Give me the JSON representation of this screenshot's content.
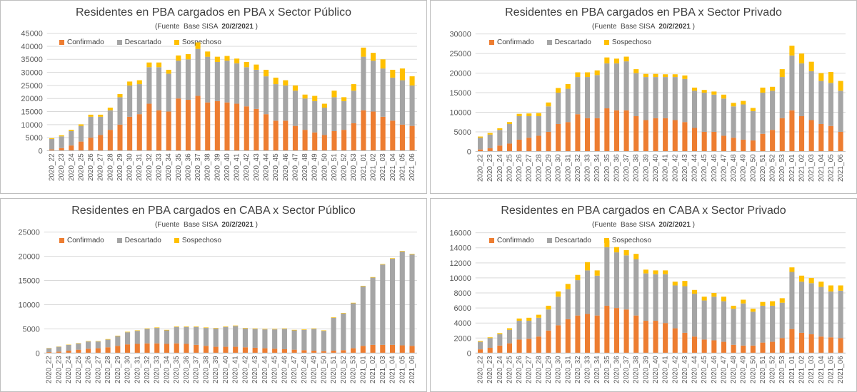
{
  "colors": {
    "confirmado": "#ED7D31",
    "descartado": "#A5A5A5",
    "sospechoso": "#FFC000",
    "axis_text": "#595959",
    "grid": "#D9D9D9"
  },
  "chart_data": [
    {
      "type": "bar",
      "stacked": true,
      "title": "Residentes en  PBA cargados en PBA x Sector Público",
      "subtitle_prefix": "(Fuente  Base SISA",
      "subtitle_date": "20/2/2021",
      "subtitle_suffix": ")",
      "legend_placement": "top-left",
      "ylim": [
        0,
        45000
      ],
      "yticks": [
        "0",
        "5000",
        "10000",
        "15000",
        "20000",
        "25000",
        "30000",
        "35000",
        "40000",
        "45000"
      ],
      "categories": [
        "2020_22",
        "2020_23",
        "2020_24",
        "2020_25",
        "2020_26",
        "2020_27",
        "2020_28",
        "2020_29",
        "2020_30",
        "2020_31",
        "2020_32",
        "2020_33",
        "2020_34",
        "2020_35",
        "2020_36",
        "2020_37",
        "2020_38",
        "2020_39",
        "2020_40",
        "2020_41",
        "2020_42",
        "2020_43",
        "2020_44",
        "2020_45",
        "2020_46",
        "2020_47",
        "2020_48",
        "2020_49",
        "2020_50",
        "2020_51",
        "2020_52",
        "2020_53",
        "2021_01",
        "2021_02",
        "2021_03",
        "2021_04",
        "2021_05",
        "2021_06"
      ],
      "series": [
        {
          "name": "Confirmado",
          "values": [
            500,
            1000,
            2000,
            3500,
            5000,
            6000,
            8000,
            10000,
            13000,
            14000,
            18000,
            15500,
            15000,
            20000,
            19500,
            21000,
            18500,
            19000,
            18500,
            18000,
            17000,
            16000,
            14000,
            11500,
            11500,
            9500,
            8000,
            7000,
            6000,
            7500,
            8000,
            10500,
            15500,
            15000,
            13000,
            11500,
            10000,
            9500
          ]
        },
        {
          "name": "Descartado",
          "values": [
            4000,
            4500,
            5500,
            6000,
            8000,
            7000,
            7500,
            10500,
            12000,
            11500,
            14000,
            16500,
            14500,
            14500,
            15500,
            18000,
            17500,
            15000,
            16000,
            15500,
            15000,
            15000,
            14500,
            14000,
            13500,
            13500,
            12000,
            12000,
            10500,
            13000,
            11000,
            12500,
            20500,
            19500,
            18500,
            16500,
            17000,
            15500
          ]
        },
        {
          "name": "Sospechoso",
          "values": [
            300,
            400,
            500,
            600,
            800,
            800,
            1000,
            1200,
            1500,
            1500,
            1800,
            1800,
            1500,
            2000,
            2000,
            2500,
            2000,
            2000,
            1800,
            1800,
            2000,
            2000,
            2500,
            2500,
            2000,
            2000,
            1500,
            2000,
            1500,
            2500,
            1500,
            2500,
            3500,
            3000,
            3500,
            3000,
            4500,
            3500
          ]
        }
      ]
    },
    {
      "type": "bar",
      "stacked": true,
      "title": "Residentes en  PBA cargados en PBA x Sector Privado",
      "subtitle_prefix": "(Fuente  Base SISA",
      "subtitle_date": "20/2/2021",
      "subtitle_suffix": ")",
      "legend_placement": "top-left",
      "ylim": [
        0,
        30000
      ],
      "yticks": [
        "0",
        "5000",
        "10000",
        "15000",
        "20000",
        "25000",
        "30000"
      ],
      "categories": [
        "2020_22",
        "2020_23",
        "2020_24",
        "2020_25",
        "2020_26",
        "2020_27",
        "2020_28",
        "2020_29",
        "2020_30",
        "2020_31",
        "2020_32",
        "2020_33",
        "2020_34",
        "2020_35",
        "2020_36",
        "2020_37",
        "2020_38",
        "2020_39",
        "2020_40",
        "2020_41",
        "2020_42",
        "2020_43",
        "2020_44",
        "2020_45",
        "2020_46",
        "2020_47",
        "2020_48",
        "2020_49",
        "2020_50",
        "2020_51",
        "2020_52",
        "2020_53",
        "2021_01",
        "2021_02",
        "2021_03",
        "2021_04",
        "2021_05",
        "2021_06"
      ],
      "series": [
        {
          "name": "Confirmado",
          "values": [
            500,
            800,
            1500,
            2000,
            3000,
            3500,
            4000,
            5000,
            7000,
            7500,
            9500,
            8500,
            8500,
            11000,
            10500,
            10500,
            9000,
            8000,
            8500,
            8500,
            8000,
            7500,
            6000,
            5000,
            5000,
            4000,
            3500,
            3000,
            2800,
            4500,
            5500,
            8500,
            10500,
            9000,
            8000,
            7000,
            6500,
            5000
          ]
        },
        {
          "name": "Descartado",
          "values": [
            3000,
            3500,
            4000,
            5000,
            6000,
            5500,
            5000,
            6500,
            8000,
            8500,
            9500,
            10500,
            11000,
            11500,
            12000,
            12500,
            11000,
            11000,
            10500,
            10500,
            11000,
            11000,
            9500,
            10000,
            9500,
            9500,
            8000,
            9000,
            7500,
            10500,
            10000,
            10500,
            14000,
            13500,
            12500,
            11000,
            11000,
            10500
          ]
        },
        {
          "name": "Sospechoso",
          "values": [
            300,
            400,
            400,
            500,
            600,
            700,
            800,
            1000,
            1200,
            1200,
            1200,
            1200,
            1200,
            1500,
            1200,
            1200,
            1000,
            800,
            800,
            700,
            700,
            900,
            800,
            700,
            800,
            1000,
            900,
            900,
            800,
            1300,
            1000,
            2000,
            2500,
            2500,
            2400,
            2000,
            2800,
            2500
          ]
        }
      ]
    },
    {
      "type": "bar",
      "stacked": true,
      "title": "Residentes en  PBA cargados en CABA x Sector Público",
      "subtitle_prefix": "(Fuente  Base SISA",
      "subtitle_date": "20/2/2021",
      "subtitle_suffix": ")",
      "legend_placement": "top-left",
      "ylim": [
        0,
        25000
      ],
      "yticks": [
        "0",
        "5000",
        "10000",
        "15000",
        "20000",
        "25000"
      ],
      "categories": [
        "2020_22",
        "2020_23",
        "2020_24",
        "2020_25",
        "2020_26",
        "2020_27",
        "2020_28",
        "2020_29",
        "2020_30",
        "2020_31",
        "2020_32",
        "2020_33",
        "2020_34",
        "2020_35",
        "2020_36",
        "2020_37",
        "2020_38",
        "2020_39",
        "2020_40",
        "2020_41",
        "2020_42",
        "2020_43",
        "2020_44",
        "2020_45",
        "2020_46",
        "2020_47",
        "2020_48",
        "2020_49",
        "2020_50",
        "2020_51",
        "2020_52",
        "2020_53",
        "2021_01",
        "2021_02",
        "2021_03",
        "2021_04",
        "2021_05",
        "2021_06"
      ],
      "series": [
        {
          "name": "Confirmado",
          "values": [
            200,
            300,
            500,
            700,
            900,
            1000,
            1200,
            1500,
            1800,
            1900,
            2000,
            2000,
            1900,
            2000,
            1900,
            1700,
            1500,
            1300,
            1300,
            1300,
            1200,
            1100,
            1000,
            900,
            800,
            700,
            600,
            500,
            400,
            500,
            600,
            1000,
            1500,
            1700,
            1700,
            1700,
            1600,
            1500
          ]
        },
        {
          "name": "Descartado",
          "values": [
            800,
            1000,
            1200,
            1300,
            1500,
            1400,
            1600,
            2000,
            2500,
            2700,
            3000,
            3200,
            2800,
            3400,
            3500,
            3700,
            3700,
            3800,
            4100,
            4300,
            3900,
            3900,
            3900,
            4000,
            4200,
            4000,
            4200,
            4500,
            4200,
            6800,
            7600,
            9300,
            12300,
            13900,
            16600,
            17800,
            19400,
            18900
          ]
        },
        {
          "name": "Sospechoso",
          "values": [
            50,
            50,
            60,
            70,
            80,
            80,
            90,
            100,
            100,
            100,
            100,
            100,
            100,
            100,
            100,
            100,
            100,
            100,
            100,
            100,
            100,
            100,
            100,
            100,
            100,
            100,
            100,
            100,
            100,
            100,
            100,
            100,
            100,
            100,
            100,
            100,
            100,
            100
          ]
        }
      ]
    },
    {
      "type": "bar",
      "stacked": true,
      "title": "Residentes en  PBA cargados en CABA x Sector Privado",
      "subtitle_prefix": "(Fuente  Base SISA",
      "subtitle_date": "20/2/2021",
      "subtitle_suffix": ")",
      "legend_placement": "top-left",
      "ylim": [
        0,
        16000
      ],
      "yticks": [
        "0",
        "2000",
        "4000",
        "6000",
        "8000",
        "10000",
        "12000",
        "14000",
        "16000"
      ],
      "categories": [
        "2020_22",
        "2020_23",
        "2020_24",
        "2020_25",
        "2020_26",
        "2020_27",
        "2020_28",
        "2020_29",
        "2020_30",
        "2020_31",
        "2020_32",
        "2020_33",
        "2020_34",
        "2020_35",
        "2020_36",
        "2020_37",
        "2020_38",
        "2020_39",
        "2020_40",
        "2020_41",
        "2020_42",
        "2020_43",
        "2020_44",
        "2020_45",
        "2020_46",
        "2020_47",
        "2020_48",
        "2020_49",
        "2020_50",
        "2020_51",
        "2020_52",
        "2020_53",
        "2021_01",
        "2021_02",
        "2021_03",
        "2021_04",
        "2021_05",
        "2021_06"
      ],
      "series": [
        {
          "name": "Confirmado",
          "values": [
            500,
            700,
            1000,
            1300,
            1800,
            1900,
            2200,
            3000,
            3700,
            4500,
            5000,
            5200,
            5000,
            6300,
            6000,
            5800,
            5000,
            4300,
            4300,
            4000,
            3300,
            2700,
            2200,
            1800,
            1700,
            1500,
            1100,
            1000,
            1000,
            1400,
            1500,
            2000,
            3200,
            2700,
            2500,
            2200,
            2100,
            2000
          ]
        },
        {
          "name": "Descartado",
          "values": [
            1000,
            1300,
            1500,
            1800,
            2500,
            2400,
            2500,
            2800,
            3800,
            4000,
            4700,
            5800,
            5300,
            7800,
            7400,
            7200,
            7500,
            6300,
            6200,
            6500,
            5700,
            6200,
            5700,
            5200,
            5800,
            5400,
            4800,
            5600,
            4500,
            4900,
            4800,
            4700,
            7600,
            6800,
            6800,
            6600,
            6100,
            6300
          ]
        },
        {
          "name": "Sospechoso",
          "values": [
            100,
            100,
            150,
            200,
            300,
            400,
            400,
            500,
            700,
            700,
            700,
            1100,
            700,
            900,
            700,
            700,
            700,
            500,
            500,
            500,
            500,
            700,
            500,
            500,
            500,
            600,
            400,
            500,
            400,
            500,
            600,
            600,
            600,
            800,
            700,
            700,
            800,
            700
          ]
        }
      ]
    }
  ]
}
